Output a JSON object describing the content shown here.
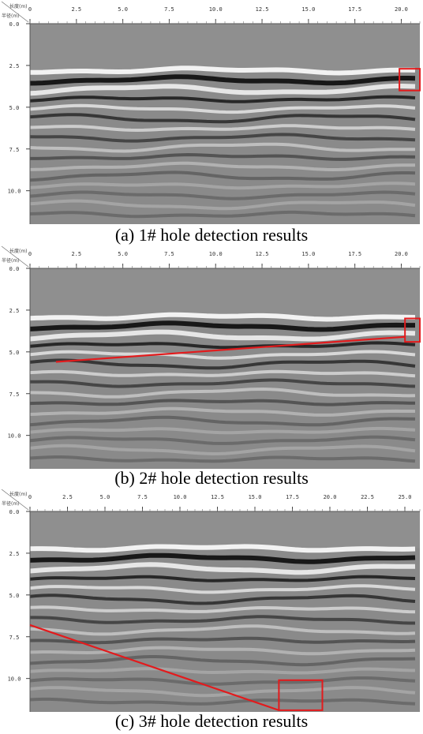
{
  "panels": [
    {
      "id": "p1",
      "caption": "(a) 1# hole detection results",
      "axis_labels": {
        "top": "长度(m)",
        "left": "半径(m)"
      },
      "x_ticks": [
        "0",
        "2.5",
        "5.0",
        "7.5",
        "10.0",
        "12.5",
        "15.0",
        "17.5",
        "20.0"
      ],
      "x_max": 21,
      "y_ticks": [
        "0.0",
        "2.5",
        "5.0",
        "7.5",
        "10.0"
      ],
      "y_max": 12,
      "reflector_start": 2.8,
      "marks": {
        "rect": {
          "x0": 19.9,
          "x1": 21.0,
          "y0": 2.7,
          "y1": 4.0
        }
      }
    },
    {
      "id": "p2",
      "caption": "(b) 2# hole detection results",
      "axis_labels": {
        "top": "长度(m)",
        "left": "半径(m)"
      },
      "x_ticks": [
        "0",
        "2.5",
        "5.0",
        "7.5",
        "10.0",
        "12.5",
        "15.0",
        "17.5",
        "20.0"
      ],
      "x_max": 21,
      "y_ticks": [
        "0.0",
        "2.5",
        "5.0",
        "7.5",
        "10.0"
      ],
      "y_max": 12,
      "reflector_start": 2.9,
      "marks": {
        "line": {
          "x0": 1.4,
          "y0": 5.6,
          "x1": 20.2,
          "y1": 4.1
        },
        "rect": {
          "x0": 20.2,
          "x1": 21.0,
          "y0": 3.0,
          "y1": 4.4
        }
      }
    },
    {
      "id": "p3",
      "caption": "(c) 3# hole detection results",
      "axis_labels": {
        "top": "长度(m)",
        "left": "半径(m)"
      },
      "x_ticks": [
        "0",
        "2.5",
        "5.0",
        "7.5",
        "10.0",
        "12.5",
        "15.0",
        "17.5",
        "20.0",
        "22.5",
        "25.0"
      ],
      "x_max": 26,
      "y_ticks": [
        "0.0",
        "2.5",
        "5.0",
        "7.5",
        "10.0"
      ],
      "y_max": 12,
      "reflector_start": 2.2,
      "marks": {
        "line": {
          "x0": 0.0,
          "y0": 6.8,
          "x1": 16.6,
          "y1": 11.9
        },
        "rect": {
          "x0": 16.6,
          "x1": 19.5,
          "y0": 10.1,
          "y1": 11.9
        }
      }
    }
  ],
  "colors": {
    "mark": "#e31a1c",
    "background": "#8a8a8a"
  }
}
